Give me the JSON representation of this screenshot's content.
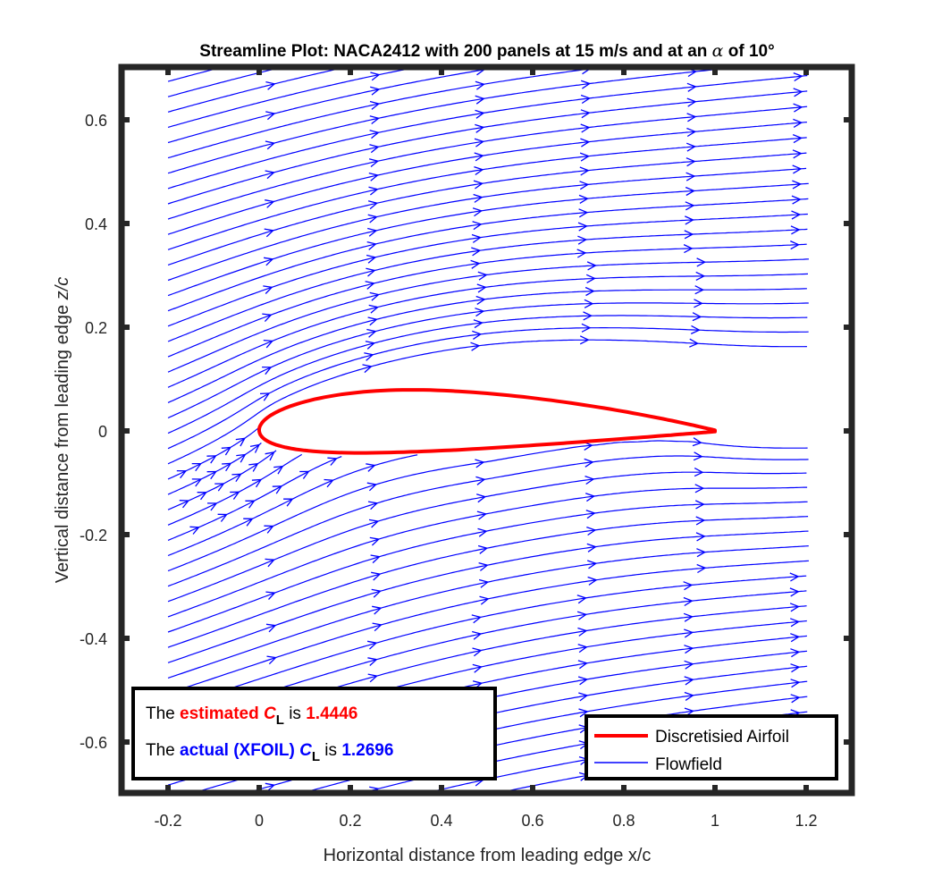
{
  "chart_data": {
    "type": "streamline",
    "title_prefix": "Streamline Plot: NACA2412 with 200 panels at 15 m/s and at an ",
    "title_symbol": "α",
    "title_suffix": " of 10°",
    "xlabel": "Horizontal distance from leading edge x/c",
    "ylabel_prefix": "Vertical distance from leading edge  ",
    "ylabel_symbol": "z/c",
    "xlim": [
      -0.3,
      1.3
    ],
    "ylim": [
      -0.7,
      0.7
    ],
    "xticks": [
      -0.2,
      0,
      0.2,
      0.4,
      0.6,
      0.8,
      1.0,
      1.2
    ],
    "xtick_labels": [
      "-0.2",
      "0",
      "0.2",
      "0.4",
      "0.6",
      "0.8",
      "1",
      "1.2"
    ],
    "yticks": [
      -0.6,
      -0.4,
      -0.2,
      0,
      0.2,
      0.4,
      0.6
    ],
    "ytick_labels": [
      "-0.6",
      "-0.4",
      "-0.2",
      "0",
      "0.2",
      "0.4",
      "0.6"
    ],
    "streamline_x_range": [
      -0.2,
      1.2
    ],
    "airfoil": {
      "name": "NACA2412",
      "max_camber": 0.02,
      "camber_position": 0.4,
      "thickness": 0.12
    },
    "series": [
      {
        "name": "Discretisied Airfoil",
        "color": "#ff0000"
      },
      {
        "name": "Flowfield",
        "color": "#0000ff"
      }
    ],
    "legend_position": "bottom-right",
    "annotation": {
      "position": "bottom-left",
      "line1": {
        "the": "The",
        "estimated": "estimated",
        "cl_symbol": "C",
        "cl_sub": "L",
        "is": "is",
        "value": "1.4446"
      },
      "line2": {
        "the": "The",
        "actual": "actual (XFOIL)",
        "cl_symbol": "C",
        "cl_sub": "L",
        "is": "is",
        "value": "1.2696"
      }
    }
  }
}
